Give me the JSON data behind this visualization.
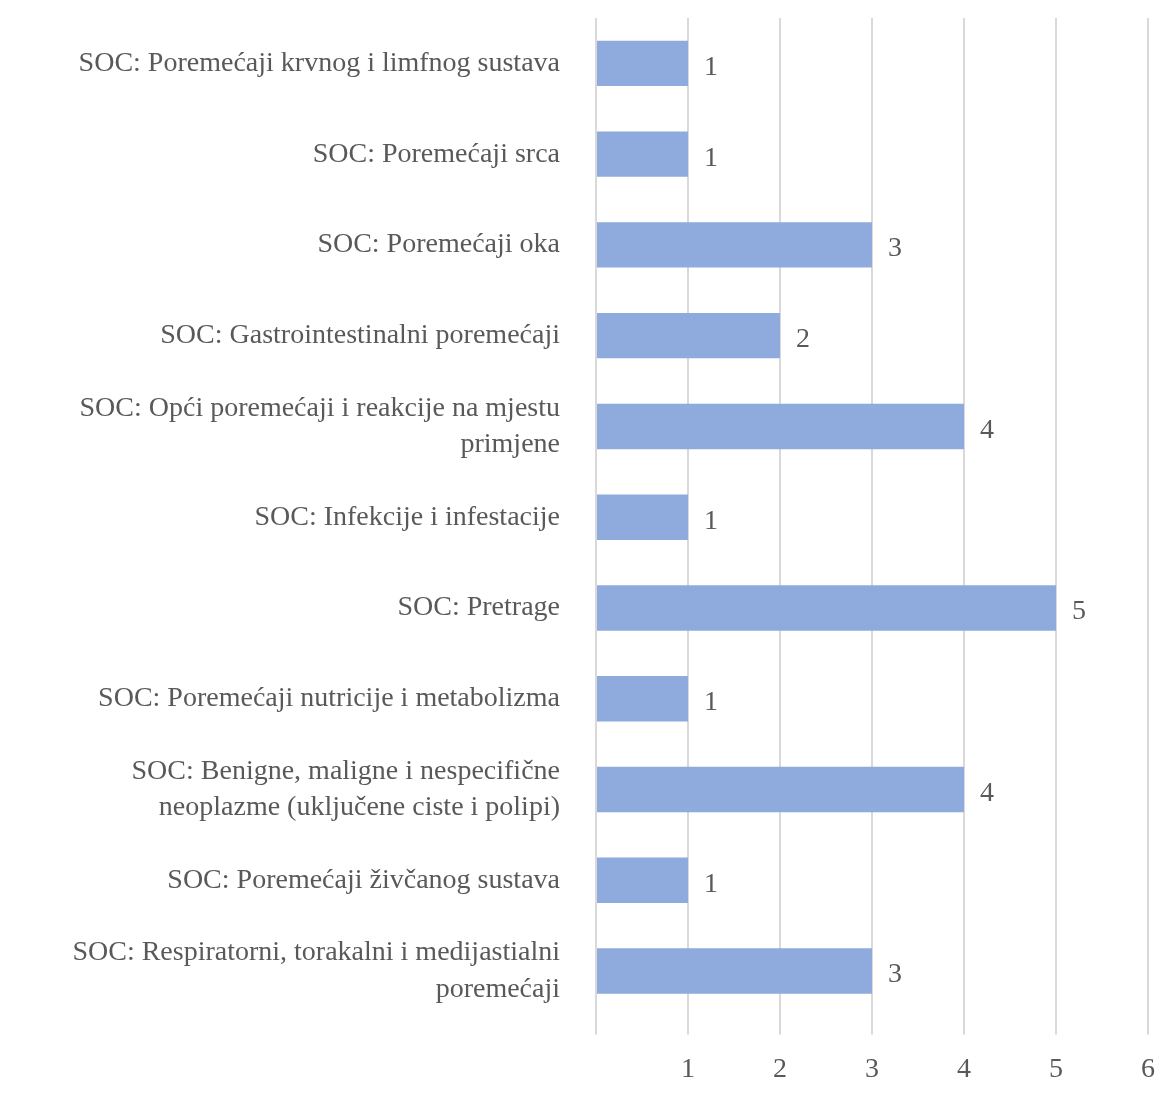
{
  "chart_data": {
    "type": "bar",
    "orientation": "horizontal",
    "categories": [
      "SOC: Poremećaji krvnog i limfnog sustava",
      "SOC: Poremećaji srca",
      "SOC: Poremećaji oka",
      "SOC: Gastrointestinalni poremećaji",
      "SOC: Opći poremećaji i reakcije na mjestu primjene",
      "SOC: Infekcije i infestacije",
      "SOC: Pretrage",
      "SOC: Poremećaji nutricije i metabolizma",
      "SOC: Benigne, maligne i nespecifične neoplazme (uključene ciste i polipi)",
      "SOC: Poremećaji živčanog sustava",
      "SOC: Respiratorni, torakalni i medijastialni poremećaji"
    ],
    "values": [
      1,
      1,
      3,
      2,
      4,
      1,
      5,
      1,
      4,
      1,
      3
    ],
    "color": "#8faadc",
    "xlim": [
      0,
      6
    ],
    "xticks": [
      {
        "value": 0,
        "label": null
      },
      1,
      2,
      3,
      4,
      5,
      6
    ],
    "grid": "x",
    "data_labels": true,
    "legend": false
  }
}
